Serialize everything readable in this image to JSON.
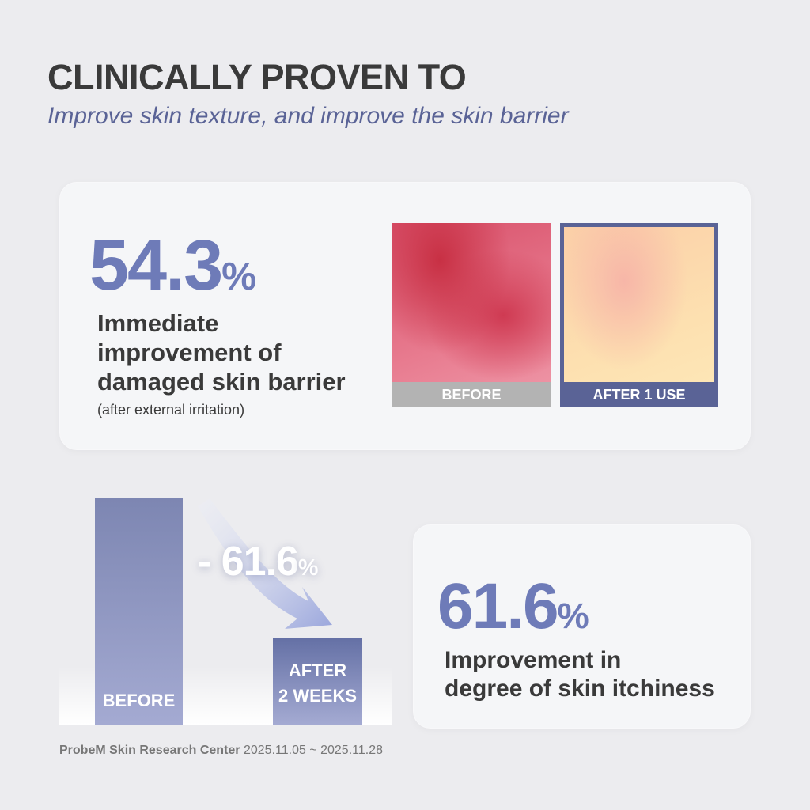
{
  "header": {
    "title": "CLINICALLY PROVEN TO",
    "subtitle": "Improve skin texture, and improve the skin barrier"
  },
  "card_barrier": {
    "stat": "54.3",
    "unit": "%",
    "description": [
      "Immediate",
      "improvement of",
      "damaged skin barrier"
    ],
    "note": "(after external irritation)",
    "images": [
      {
        "label": "BEFORE"
      },
      {
        "label": "AFTER 1 USE"
      }
    ]
  },
  "chart_data": {
    "type": "bar",
    "categories": [
      "BEFORE",
      "AFTER\n2 WEEKS"
    ],
    "values": [
      100,
      38.4
    ],
    "colors": [
      "#7d86b2",
      "#6470a5"
    ],
    "annotation": "- 61.6",
    "annotation_unit": "%"
  },
  "card_itch": {
    "stat": "61.6",
    "unit": "%",
    "description": [
      "Improvement in",
      "degree of skin itchiness"
    ]
  },
  "footer": {
    "source": "ProbeM Skin Research Center",
    "period": "2025.11.05 ~ 2025.11.28"
  }
}
